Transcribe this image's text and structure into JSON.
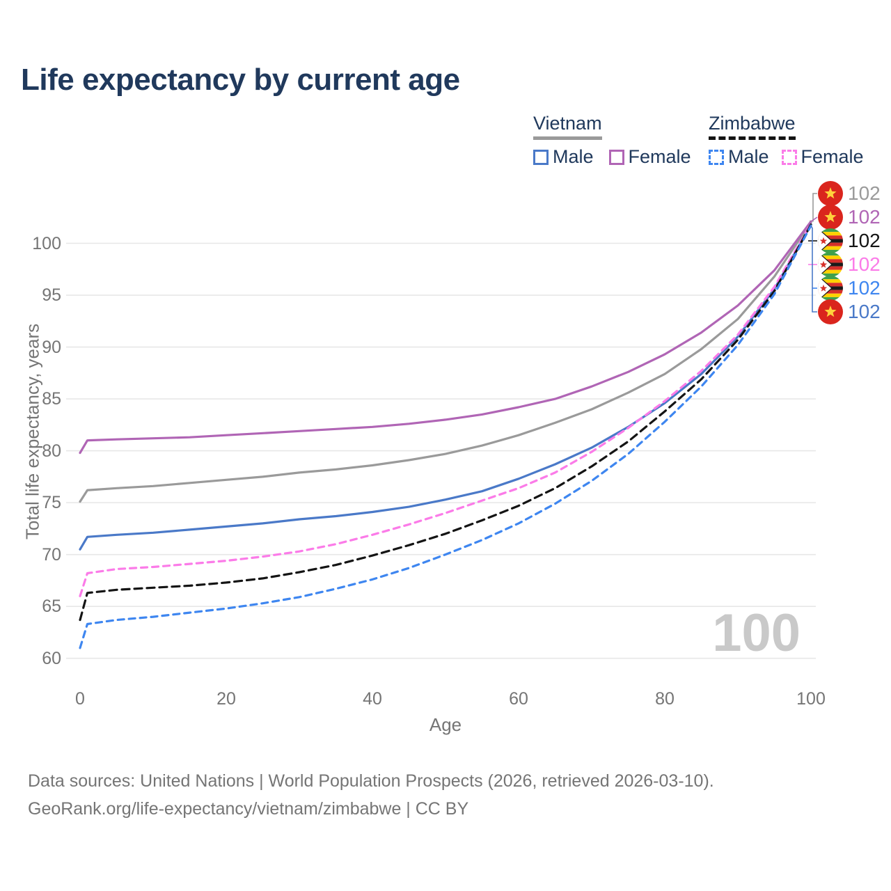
{
  "title": "Life expectancy by current age",
  "legend": {
    "groups": [
      {
        "label": "Vietnam",
        "style": "solid",
        "items": [
          {
            "label": "Male",
            "color": "#4a79c8"
          },
          {
            "label": "Female",
            "color": "#b065b5"
          }
        ]
      },
      {
        "label": "Zimbabwe",
        "style": "dashed",
        "items": [
          {
            "label": "Male",
            "color": "#3e86f0"
          },
          {
            "label": "Female",
            "color": "#fb7be8"
          }
        ]
      }
    ]
  },
  "hover_age": "100",
  "footer": {
    "line1": "Data sources: United Nations | World Population Prospects (2026, retrieved 2026-03-10).",
    "line2": "GeoRank.org/life-expectancy/vietnam/zimbabwe | CC BY"
  },
  "colors": {
    "title_text": "#20395c",
    "axis_text": "#757575",
    "gridline": "#e7e7e7",
    "watermark": "#c9c9c9",
    "vietnam_total": "#9a9a9a",
    "vietnam_female": "#b065b5",
    "vietnam_male": "#4a79c8",
    "zimbabwe_total": "#141414",
    "zimbabwe_female": "#fb7be8",
    "zimbabwe_male": "#3e86f0"
  },
  "chart_data": {
    "type": "line",
    "title": "Life expectancy by current age",
    "xlabel": "Age",
    "ylabel": "Total life expectancy, years",
    "xlim": [
      0,
      100
    ],
    "ylim": [
      60,
      102.5
    ],
    "xticks": [
      0,
      20,
      40,
      60,
      80,
      100
    ],
    "yticks": [
      60,
      65,
      70,
      75,
      80,
      85,
      90,
      95,
      100
    ],
    "grid": "horizontal",
    "legend_position": "top-right",
    "x": [
      0,
      1,
      5,
      10,
      15,
      20,
      25,
      30,
      35,
      40,
      45,
      50,
      55,
      60,
      65,
      70,
      75,
      80,
      85,
      90,
      95,
      100
    ],
    "series": [
      {
        "name": "Vietnam",
        "country": "vietnam",
        "sex": "both",
        "color": "#9a9a9a",
        "dash": "solid",
        "end_label": "102",
        "values": [
          75.1,
          76.2,
          76.4,
          76.6,
          76.9,
          77.2,
          77.5,
          77.9,
          78.2,
          78.6,
          79.1,
          79.7,
          80.5,
          81.5,
          82.7,
          84.0,
          85.6,
          87.4,
          89.8,
          92.7,
          96.8,
          102.0
        ]
      },
      {
        "name": "Vietnam Female",
        "country": "vietnam",
        "sex": "female",
        "color": "#b065b5",
        "dash": "solid",
        "end_label": "102",
        "values": [
          79.8,
          81.0,
          81.1,
          81.2,
          81.3,
          81.5,
          81.7,
          81.9,
          82.1,
          82.3,
          82.6,
          83.0,
          83.5,
          84.2,
          85.0,
          86.2,
          87.6,
          89.3,
          91.4,
          94.0,
          97.4,
          102.1
        ]
      },
      {
        "name": "Vietnam Male",
        "country": "vietnam",
        "sex": "male",
        "color": "#4a79c8",
        "dash": "solid",
        "end_label": "102",
        "values": [
          70.5,
          71.7,
          71.9,
          72.1,
          72.4,
          72.7,
          73.0,
          73.4,
          73.7,
          74.1,
          74.6,
          75.3,
          76.1,
          77.3,
          78.7,
          80.3,
          82.3,
          84.6,
          87.4,
          91.0,
          95.6,
          101.8
        ]
      },
      {
        "name": "Zimbabwe Female",
        "country": "zimbabwe",
        "sex": "female",
        "color": "#fb7be8",
        "dash": "dashed",
        "end_label": "102",
        "values": [
          66.0,
          68.2,
          68.6,
          68.8,
          69.1,
          69.4,
          69.8,
          70.3,
          71.0,
          71.9,
          72.9,
          74.0,
          75.2,
          76.4,
          77.9,
          79.9,
          82.2,
          84.8,
          87.7,
          91.2,
          95.8,
          101.9
        ]
      },
      {
        "name": "Zimbabwe",
        "country": "zimbabwe",
        "sex": "both",
        "color": "#141414",
        "dash": "dashed",
        "end_label": "102",
        "values": [
          63.7,
          66.3,
          66.6,
          66.8,
          67.0,
          67.3,
          67.7,
          68.3,
          69.0,
          69.9,
          70.9,
          72.0,
          73.3,
          74.7,
          76.4,
          78.5,
          80.9,
          83.8,
          86.9,
          90.7,
          95.4,
          101.8
        ]
      },
      {
        "name": "Zimbabwe Male",
        "country": "zimbabwe",
        "sex": "male",
        "color": "#3e86f0",
        "dash": "dashed",
        "end_label": "102",
        "values": [
          61.0,
          63.3,
          63.7,
          64.0,
          64.4,
          64.8,
          65.3,
          65.9,
          66.7,
          67.6,
          68.7,
          70.0,
          71.4,
          73.0,
          74.9,
          77.1,
          79.7,
          82.8,
          86.2,
          90.2,
          95.1,
          101.7
        ]
      }
    ],
    "end_label_rows_top_to_bottom": [
      "Vietnam",
      "Vietnam Female",
      "Zimbabwe",
      "Zimbabwe Female",
      "Zimbabwe Male",
      "Vietnam Male"
    ]
  }
}
